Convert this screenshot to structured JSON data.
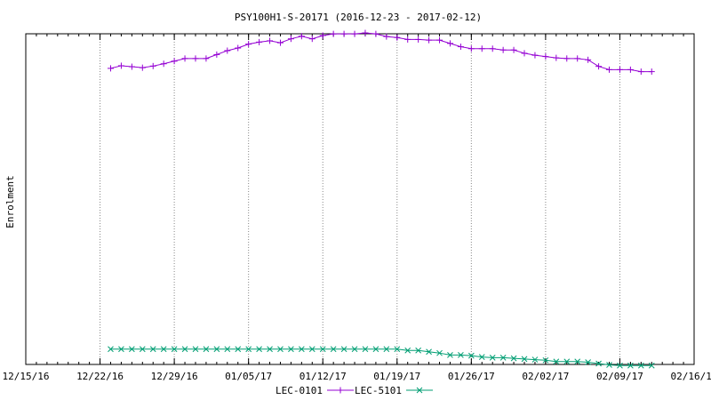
{
  "chart_data": {
    "type": "line",
    "title": "PSY100H1-S-20171 (2016-12-23 - 2017-02-12)",
    "ylabel": "Enrolment",
    "xlabel": "",
    "x_ticks": [
      "12/15/16",
      "12/22/16",
      "12/29/16",
      "01/05/17",
      "01/12/17",
      "01/19/17",
      "01/26/17",
      "02/02/17",
      "02/09/17",
      "02/16/17"
    ],
    "x_range": [
      "2016-12-15",
      "2017-02-16"
    ],
    "grid": "vertical dotted lines at major x ticks",
    "legend_position": "bottom-center",
    "x": [
      "2016-12-23",
      "2016-12-24",
      "2016-12-25",
      "2016-12-26",
      "2016-12-27",
      "2016-12-28",
      "2016-12-29",
      "2016-12-30",
      "2016-12-31",
      "2017-01-01",
      "2017-01-02",
      "2017-01-03",
      "2017-01-04",
      "2017-01-05",
      "2017-01-06",
      "2017-01-07",
      "2017-01-08",
      "2017-01-09",
      "2017-01-10",
      "2017-01-11",
      "2017-01-12",
      "2017-01-13",
      "2017-01-14",
      "2017-01-15",
      "2017-01-16",
      "2017-01-17",
      "2017-01-18",
      "2017-01-19",
      "2017-01-20",
      "2017-01-21",
      "2017-01-22",
      "2017-01-23",
      "2017-01-24",
      "2017-01-25",
      "2017-01-26",
      "2017-01-27",
      "2017-01-28",
      "2017-01-29",
      "2017-01-30",
      "2017-01-31",
      "2017-02-01",
      "2017-02-02",
      "2017-02-03",
      "2017-02-04",
      "2017-02-05",
      "2017-02-06",
      "2017-02-07",
      "2017-02-08",
      "2017-02-09",
      "2017-02-10",
      "2017-02-11",
      "2017-02-12"
    ],
    "series": [
      {
        "name": "LEC-0101",
        "color": "#9400d3",
        "marker": "plus",
        "values": [
          0.9,
          0.908,
          0.905,
          0.902,
          0.907,
          0.914,
          0.922,
          0.93,
          0.93,
          0.93,
          0.942,
          0.954,
          0.962,
          0.974,
          0.98,
          0.984,
          0.978,
          0.99,
          0.998,
          0.99,
          1.0,
          1.005,
          1.005,
          1.005,
          1.008,
          1.005,
          0.997,
          0.994,
          0.988,
          0.988,
          0.986,
          0.986,
          0.976,
          0.966,
          0.96,
          0.96,
          0.96,
          0.956,
          0.956,
          0.946,
          0.94,
          0.936,
          0.932,
          0.93,
          0.93,
          0.926,
          0.906,
          0.896,
          0.896,
          0.896,
          0.89,
          0.89
        ]
      },
      {
        "name": "LEC-5101",
        "color": "#009e73",
        "marker": "cross",
        "values": [
          0.044,
          0.044,
          0.044,
          0.044,
          0.044,
          0.044,
          0.044,
          0.044,
          0.044,
          0.044,
          0.044,
          0.044,
          0.044,
          0.044,
          0.044,
          0.044,
          0.044,
          0.044,
          0.044,
          0.044,
          0.044,
          0.044,
          0.044,
          0.044,
          0.044,
          0.044,
          0.044,
          0.044,
          0.04,
          0.04,
          0.036,
          0.032,
          0.026,
          0.026,
          0.024,
          0.02,
          0.018,
          0.018,
          0.016,
          0.014,
          0.012,
          0.01,
          0.006,
          0.006,
          0.006,
          0.004,
          0.0,
          -0.004,
          -0.006,
          -0.006,
          -0.006,
          -0.006
        ]
      }
    ],
    "ylim": [
      0,
      1
    ]
  }
}
